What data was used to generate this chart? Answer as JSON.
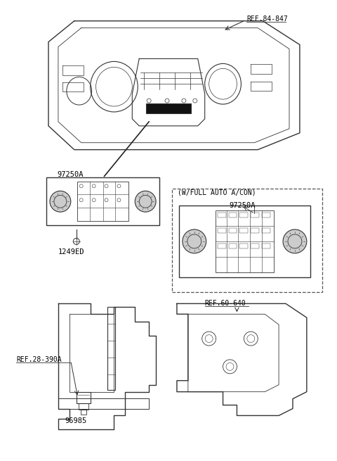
{
  "bg_color": "#ffffff",
  "line_color": "#333333",
  "text_color": "#000000",
  "labels": {
    "ref_84_847": "REF.84-847",
    "ref_60_640": "REF.60-640",
    "ref_28_390A": "REF.28-390A",
    "part_97250A_top": "97250A",
    "part_97250A_box": "97250A",
    "part_1249ED": "1249ED",
    "part_96985": "96985",
    "w_full_auto": "(W/FULL AUTO A/CON)"
  },
  "figsize": [
    4.8,
    6.55
  ],
  "dpi": 100
}
